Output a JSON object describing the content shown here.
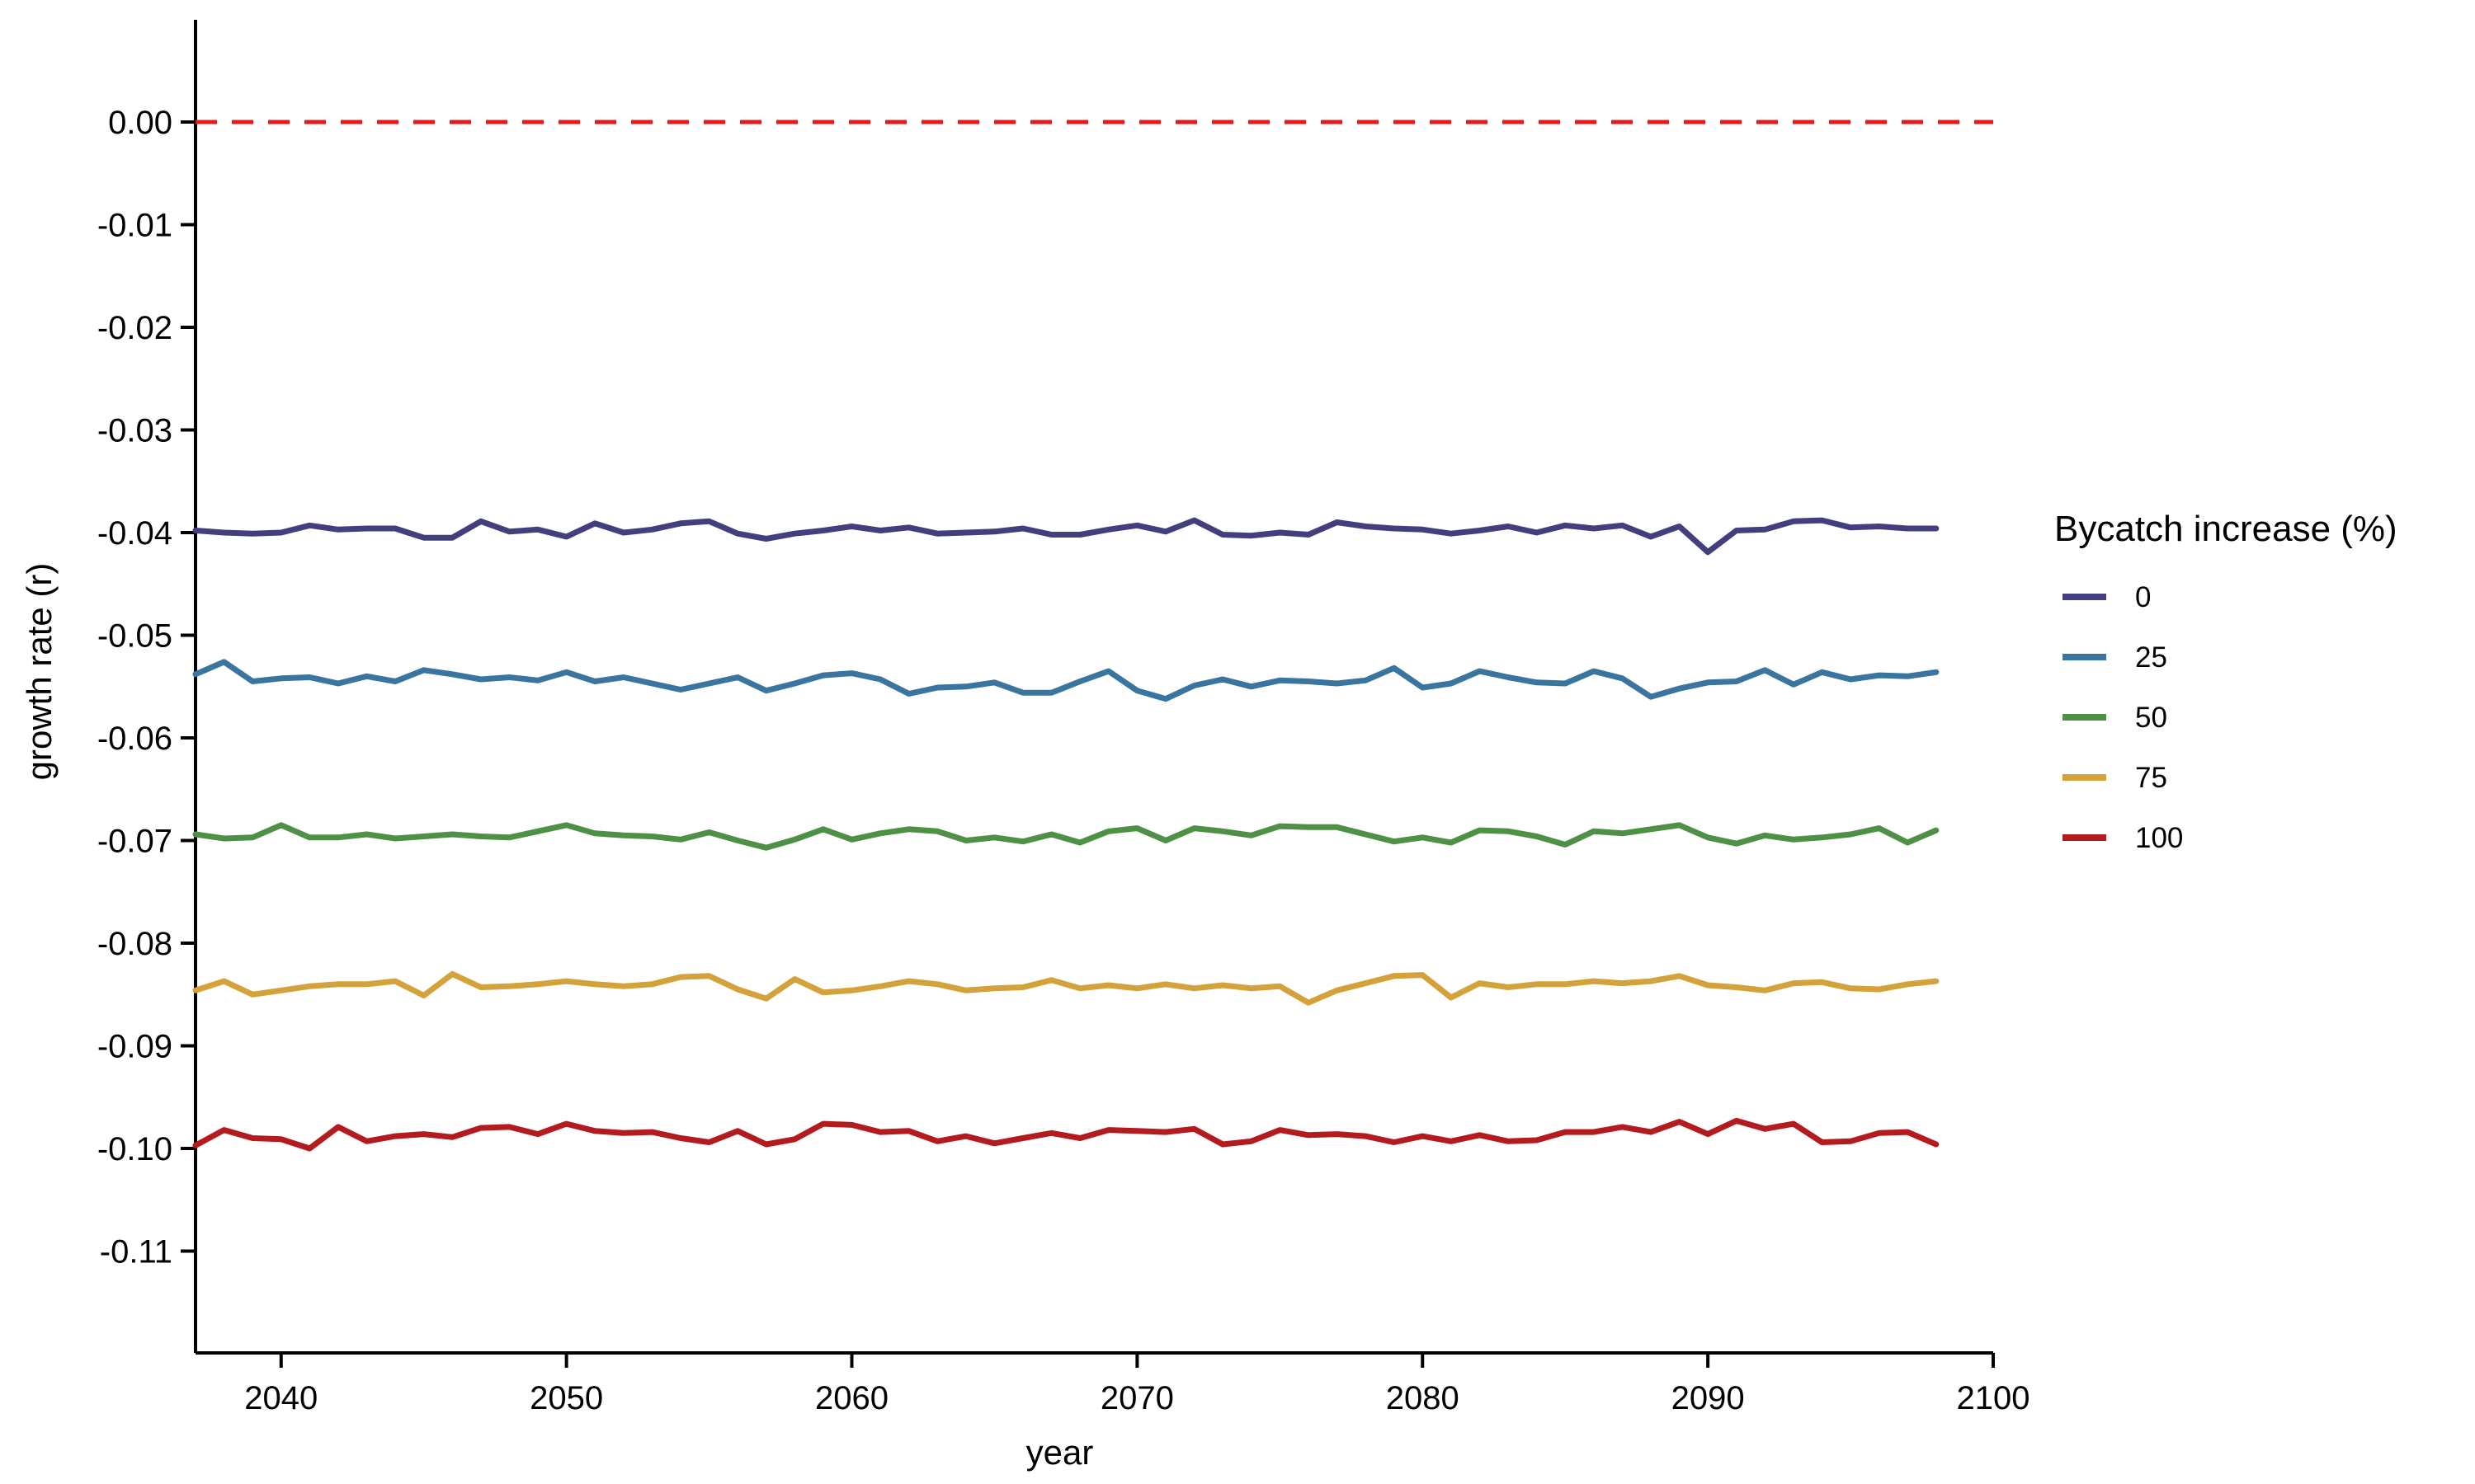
{
  "chart_data": {
    "type": "line",
    "title": "",
    "xlabel": "year",
    "ylabel": "growth rate (r)",
    "xlim": [
      2037,
      2100
    ],
    "ylim": [
      -0.12,
      0.01
    ],
    "x_ticks": [
      2040,
      2050,
      2060,
      2070,
      2080,
      2090,
      2100
    ],
    "x_tick_labels": [
      "2040",
      "2050",
      "2060",
      "2070",
      "2080",
      "2090",
      "2100"
    ],
    "y_ticks": [
      0.0,
      -0.01,
      -0.02,
      -0.03,
      -0.04,
      -0.05,
      -0.06,
      -0.07,
      -0.08,
      -0.09,
      -0.1,
      -0.11
    ],
    "y_tick_labels": [
      "0.00",
      "-0.01",
      "-0.02",
      "-0.03",
      "-0.04",
      "-0.05",
      "-0.06",
      "-0.07",
      "-0.08",
      "-0.09",
      "-0.10",
      "-0.11"
    ],
    "grid": false,
    "reference_line": {
      "y": 0.0,
      "style": "dashed",
      "color": "#e41a1c"
    },
    "legend": {
      "title": "Bycatch increase (%)",
      "position": "right"
    },
    "x": [
      2037,
      2038,
      2039,
      2040,
      2041,
      2042,
      2043,
      2044,
      2045,
      2046,
      2047,
      2048,
      2049,
      2050,
      2051,
      2052,
      2053,
      2054,
      2055,
      2056,
      2057,
      2058,
      2059,
      2060,
      2061,
      2062,
      2063,
      2064,
      2065,
      2066,
      2067,
      2068,
      2069,
      2070,
      2071,
      2072,
      2073,
      2074,
      2075,
      2076,
      2077,
      2078,
      2079,
      2080,
      2081,
      2082,
      2083,
      2084,
      2085,
      2086,
      2087,
      2088,
      2089,
      2090,
      2091,
      2092,
      2093,
      2094,
      2095,
      2096,
      2097,
      2098
    ],
    "series": [
      {
        "name": "0",
        "color": "#433f7f",
        "values": [
          -0.0398,
          -0.04,
          -0.0401,
          -0.04,
          -0.0393,
          -0.0397,
          -0.0396,
          -0.0396,
          -0.0405,
          -0.0405,
          -0.0389,
          -0.0399,
          -0.0397,
          -0.0404,
          -0.0391,
          -0.04,
          -0.0397,
          -0.0391,
          -0.0389,
          -0.0401,
          -0.0406,
          -0.0401,
          -0.0398,
          -0.0394,
          -0.0398,
          -0.0395,
          -0.0401,
          -0.04,
          -0.0399,
          -0.0396,
          -0.0402,
          -0.0402,
          -0.0397,
          -0.0393,
          -0.0399,
          -0.0388,
          -0.0402,
          -0.0403,
          -0.04,
          -0.0402,
          -0.039,
          -0.0394,
          -0.0396,
          -0.0397,
          -0.0401,
          -0.0398,
          -0.0394,
          -0.04,
          -0.0393,
          -0.0396,
          -0.0393,
          -0.0404,
          -0.0394,
          -0.0419,
          -0.0398,
          -0.0397,
          -0.0389,
          -0.0388,
          -0.0395,
          -0.0394,
          -0.0396,
          -0.0396
        ]
      },
      {
        "name": "25",
        "color": "#3a75a0",
        "values": [
          -0.0538,
          -0.0526,
          -0.0545,
          -0.0542,
          -0.0541,
          -0.0547,
          -0.054,
          -0.0545,
          -0.0534,
          -0.0538,
          -0.0543,
          -0.0541,
          -0.0544,
          -0.0536,
          -0.0545,
          -0.0541,
          -0.0547,
          -0.0553,
          -0.0547,
          -0.0541,
          -0.0554,
          -0.0547,
          -0.0539,
          -0.0537,
          -0.0543,
          -0.0557,
          -0.0551,
          -0.055,
          -0.0546,
          -0.0556,
          -0.0556,
          -0.0545,
          -0.0535,
          -0.0554,
          -0.0562,
          -0.0549,
          -0.0543,
          -0.055,
          -0.0544,
          -0.0545,
          -0.0547,
          -0.0544,
          -0.0532,
          -0.0551,
          -0.0547,
          -0.0535,
          -0.0541,
          -0.0546,
          -0.0547,
          -0.0535,
          -0.0542,
          -0.056,
          -0.0552,
          -0.0546,
          -0.0545,
          -0.0534,
          -0.0548,
          -0.0536,
          -0.0543,
          -0.0539,
          -0.054,
          -0.0536
        ]
      },
      {
        "name": "50",
        "color": "#4e9045",
        "values": [
          -0.0694,
          -0.0698,
          -0.0697,
          -0.0685,
          -0.0697,
          -0.0697,
          -0.0694,
          -0.0698,
          -0.0696,
          -0.0694,
          -0.0696,
          -0.0697,
          -0.0691,
          -0.0685,
          -0.0693,
          -0.0695,
          -0.0696,
          -0.0699,
          -0.0692,
          -0.07,
          -0.0707,
          -0.0699,
          -0.0689,
          -0.0699,
          -0.0693,
          -0.0689,
          -0.0691,
          -0.07,
          -0.0697,
          -0.0701,
          -0.0694,
          -0.0702,
          -0.0691,
          -0.0688,
          -0.07,
          -0.0688,
          -0.0691,
          -0.0695,
          -0.0686,
          -0.0687,
          -0.0687,
          -0.0694,
          -0.0701,
          -0.0697,
          -0.0702,
          -0.069,
          -0.0691,
          -0.0696,
          -0.0704,
          -0.0691,
          -0.0693,
          -0.0689,
          -0.0685,
          -0.0697,
          -0.0703,
          -0.0695,
          -0.0699,
          -0.0697,
          -0.0694,
          -0.0688,
          -0.0702,
          -0.069
        ]
      },
      {
        "name": "75",
        "color": "#d4a23a",
        "values": [
          -0.0846,
          -0.0837,
          -0.085,
          -0.0846,
          -0.0842,
          -0.084,
          -0.084,
          -0.0837,
          -0.0851,
          -0.083,
          -0.0843,
          -0.0842,
          -0.084,
          -0.0837,
          -0.084,
          -0.0842,
          -0.084,
          -0.0833,
          -0.0832,
          -0.0845,
          -0.0854,
          -0.0835,
          -0.0848,
          -0.0846,
          -0.0842,
          -0.0837,
          -0.084,
          -0.0846,
          -0.0844,
          -0.0843,
          -0.0836,
          -0.0844,
          -0.0841,
          -0.0844,
          -0.084,
          -0.0844,
          -0.0841,
          -0.0844,
          -0.0842,
          -0.0858,
          -0.0846,
          -0.0839,
          -0.0832,
          -0.0831,
          -0.0853,
          -0.0839,
          -0.0843,
          -0.084,
          -0.084,
          -0.0837,
          -0.0839,
          -0.0837,
          -0.0832,
          -0.0841,
          -0.0843,
          -0.0846,
          -0.0839,
          -0.0838,
          -0.0844,
          -0.0845,
          -0.084,
          -0.0837
        ]
      },
      {
        "name": "100",
        "color": "#b31b1e",
        "values": [
          -0.0997,
          -0.0982,
          -0.099,
          -0.0991,
          -0.1,
          -0.0979,
          -0.0993,
          -0.0988,
          -0.0986,
          -0.0989,
          -0.098,
          -0.0979,
          -0.0986,
          -0.0976,
          -0.0983,
          -0.0985,
          -0.0984,
          -0.099,
          -0.0994,
          -0.0983,
          -0.0996,
          -0.0991,
          -0.0976,
          -0.0977,
          -0.0984,
          -0.0983,
          -0.0993,
          -0.0988,
          -0.0995,
          -0.099,
          -0.0985,
          -0.099,
          -0.0982,
          -0.0983,
          -0.0984,
          -0.0981,
          -0.0996,
          -0.0993,
          -0.0982,
          -0.0987,
          -0.0986,
          -0.0988,
          -0.0994,
          -0.0988,
          -0.0993,
          -0.0987,
          -0.0993,
          -0.0992,
          -0.0984,
          -0.0984,
          -0.0979,
          -0.0984,
          -0.0974,
          -0.0986,
          -0.0973,
          -0.0981,
          -0.0976,
          -0.0994,
          -0.0993,
          -0.0985,
          -0.0984,
          -0.0996
        ]
      }
    ]
  }
}
